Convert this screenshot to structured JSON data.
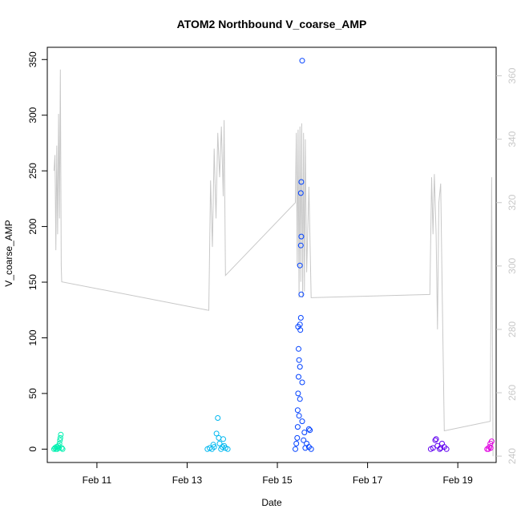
{
  "chart_data": {
    "type": "scatter",
    "title": "ATOM2 Northbound V_coarse_AMP",
    "xlabel": "Date",
    "ylabel": "V_coarse_AMP",
    "x_unit": "days (Feb)",
    "xlim": [
      9.9,
      19.85
    ],
    "ylim": [
      -12,
      361
    ],
    "x_ticks": [
      {
        "label": "Feb 11",
        "value": 11
      },
      {
        "label": "Feb 13",
        "value": 13
      },
      {
        "label": "Feb 15",
        "value": 15
      },
      {
        "label": "Feb 17",
        "value": 17
      },
      {
        "label": "Feb 19",
        "value": 19
      }
    ],
    "y_ticks": [
      0,
      50,
      100,
      150,
      200,
      250,
      300,
      350
    ],
    "y2_ticks": [
      240,
      260,
      280,
      300,
      320,
      340,
      360
    ],
    "y2lim": [
      238,
      369
    ],
    "grid": false,
    "colors": {
      "line": "#c8c8c8",
      "frame": "#000000",
      "right_axis": "#c8c8c8"
    },
    "series": [
      {
        "color": "#00f0b0",
        "points": [
          [
            10.05,
            0
          ],
          [
            10.07,
            1
          ],
          [
            10.1,
            2
          ],
          [
            10.12,
            0
          ],
          [
            10.15,
            3
          ],
          [
            10.17,
            5
          ],
          [
            10.18,
            8
          ],
          [
            10.2,
            13
          ],
          [
            10.19,
            10
          ],
          [
            10.16,
            1
          ],
          [
            10.13,
            2
          ],
          [
            10.09,
            0
          ],
          [
            10.22,
            1
          ],
          [
            10.24,
            0
          ]
        ]
      },
      {
        "color": "#00b8f0",
        "points": [
          [
            13.45,
            0
          ],
          [
            13.5,
            1
          ],
          [
            13.55,
            0
          ],
          [
            13.6,
            2
          ],
          [
            13.65,
            14
          ],
          [
            13.68,
            28
          ],
          [
            13.7,
            10
          ],
          [
            13.72,
            5
          ],
          [
            13.75,
            0
          ],
          [
            13.8,
            9
          ],
          [
            13.82,
            3
          ],
          [
            13.85,
            1
          ],
          [
            13.9,
            0
          ],
          [
            13.58,
            4
          ],
          [
            13.78,
            2
          ]
        ]
      },
      {
        "color": "#0040ff",
        "points": [
          [
            15.4,
            0
          ],
          [
            15.42,
            5
          ],
          [
            15.44,
            10
          ],
          [
            15.45,
            20
          ],
          [
            15.45,
            35
          ],
          [
            15.46,
            50
          ],
          [
            15.47,
            65
          ],
          [
            15.48,
            80
          ],
          [
            15.46,
            110
          ],
          [
            15.5,
            112
          ],
          [
            15.52,
            118
          ],
          [
            15.51,
            107
          ],
          [
            15.5,
            165
          ],
          [
            15.52,
            183
          ],
          [
            15.53,
            191
          ],
          [
            15.52,
            230
          ],
          [
            15.53,
            240
          ],
          [
            15.55,
            349
          ],
          [
            15.53,
            139
          ],
          [
            15.47,
            90
          ],
          [
            15.5,
            74
          ],
          [
            15.55,
            60
          ],
          [
            15.5,
            45
          ],
          [
            15.48,
            30
          ],
          [
            15.6,
            15
          ],
          [
            15.65,
            5
          ],
          [
            15.7,
            18
          ],
          [
            15.72,
            17
          ],
          [
            15.75,
            0
          ],
          [
            15.7,
            2
          ],
          [
            15.62,
            1
          ],
          [
            15.55,
            25
          ],
          [
            15.58,
            8
          ]
        ]
      },
      {
        "color": "#6000f0",
        "points": [
          [
            18.4,
            0
          ],
          [
            18.45,
            1
          ],
          [
            18.5,
            8
          ],
          [
            18.52,
            9
          ],
          [
            18.55,
            3
          ],
          [
            18.6,
            0
          ],
          [
            18.65,
            5
          ],
          [
            18.7,
            2
          ],
          [
            18.75,
            0
          ],
          [
            18.62,
            1
          ]
        ]
      },
      {
        "color": "#e000e0",
        "points": [
          [
            19.65,
            0
          ],
          [
            19.7,
            2
          ],
          [
            19.72,
            5
          ],
          [
            19.75,
            7
          ],
          [
            19.73,
            1
          ],
          [
            19.68,
            0
          ]
        ]
      }
    ],
    "line_series": {
      "axis": "right",
      "points": [
        [
          10.05,
          330
        ],
        [
          10.07,
          335
        ],
        [
          10.09,
          305
        ],
        [
          10.11,
          338
        ],
        [
          10.13,
          310
        ],
        [
          10.15,
          348
        ],
        [
          10.17,
          315
        ],
        [
          10.19,
          362
        ],
        [
          10.21,
          300
        ],
        [
          10.22,
          295
        ],
        [
          13.48,
          286
        ],
        [
          13.52,
          327
        ],
        [
          13.56,
          306
        ],
        [
          13.6,
          337
        ],
        [
          13.64,
          315
        ],
        [
          13.68,
          342
        ],
        [
          13.72,
          328
        ],
        [
          13.76,
          344
        ],
        [
          13.8,
          322
        ],
        [
          13.82,
          346
        ],
        [
          13.85,
          297
        ],
        [
          15.4,
          320
        ],
        [
          15.42,
          342
        ],
        [
          15.44,
          300
        ],
        [
          15.46,
          343
        ],
        [
          15.48,
          290
        ],
        [
          15.5,
          344
        ],
        [
          15.52,
          295
        ],
        [
          15.54,
          345
        ],
        [
          15.56,
          290
        ],
        [
          15.58,
          342
        ],
        [
          15.6,
          292
        ],
        [
          15.62,
          340
        ],
        [
          15.65,
          298
        ],
        [
          15.7,
          325
        ],
        [
          15.75,
          290
        ],
        [
          18.38,
          291
        ],
        [
          18.42,
          328
        ],
        [
          18.45,
          310
        ],
        [
          18.48,
          329
        ],
        [
          18.52,
          310
        ],
        [
          18.55,
          280
        ],
        [
          18.58,
          320
        ],
        [
          18.62,
          326
        ],
        [
          18.65,
          295
        ],
        [
          18.7,
          248
        ],
        [
          19.72,
          251
        ],
        [
          19.75,
          328
        ],
        [
          19.78,
          240
        ]
      ]
    }
  }
}
